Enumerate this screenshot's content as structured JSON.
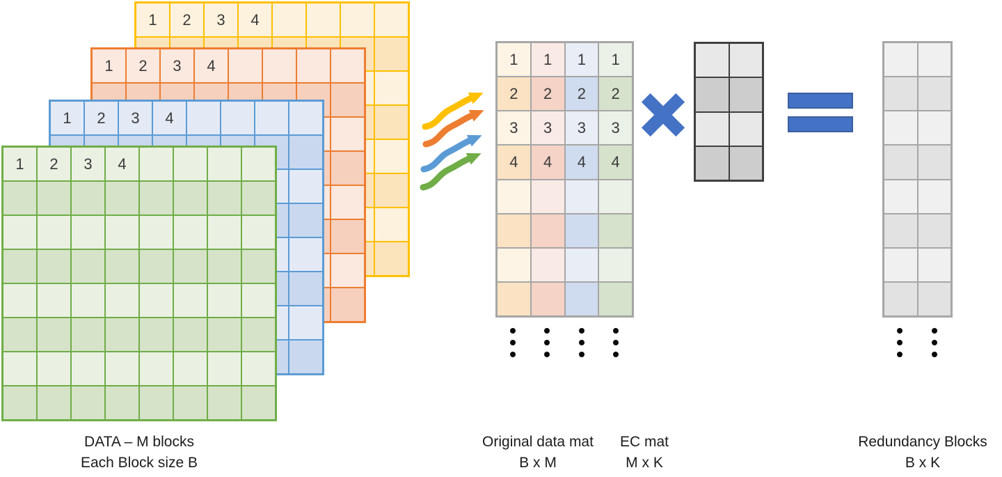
{
  "diagram_title": "erasure-coding-diagram",
  "colors": {
    "operator_blue": "#4472C4",
    "operator_blue_border": "#3B5F9E",
    "grid_line_gray": "#A6A6A6",
    "ec_border_dark": "#404040",
    "dot_black": "#0A0A0A",
    "label_text": "#1C1C1C",
    "cell_number_text": "#3A3A3A"
  },
  "data_blocks": {
    "cell_labels": [
      "1",
      "2",
      "3",
      "4"
    ],
    "rows": 8,
    "cols": 8,
    "grids": [
      {
        "name": "yellow-block",
        "border_color": "#FFC000",
        "fill_light": "#FDF2DD",
        "fill_dark": "#FBE3BB"
      },
      {
        "name": "orange-block",
        "border_color": "#ED7D31",
        "fill_light": "#FBE8DF",
        "fill_dark": "#F6D0BD"
      },
      {
        "name": "blue-block",
        "border_color": "#5B9BD5",
        "fill_light": "#E3EAF6",
        "fill_dark": "#C9D8EE"
      },
      {
        "name": "green-block",
        "border_color": "#70AD47",
        "fill_light": "#EAF1E3",
        "fill_dark": "#D6E3C9"
      }
    ],
    "caption_line1": "DATA – M blocks",
    "caption_line2": "Each Block size B"
  },
  "arrows": [
    {
      "name": "yellow-arrow",
      "color": "#FFC000"
    },
    {
      "name": "orange-arrow",
      "color": "#ED7D31"
    },
    {
      "name": "blue-arrow",
      "color": "#5B9BD5"
    },
    {
      "name": "green-arrow",
      "color": "#70AD47"
    }
  ],
  "original_mat": {
    "row_labels": [
      "1",
      "2",
      "3",
      "4"
    ],
    "rows": 8,
    "cols": 4,
    "columns": [
      {
        "name": "yellow-column",
        "fill_light": "#FDF4E6",
        "fill_dark": "#FAE2C3"
      },
      {
        "name": "orange-column",
        "fill_light": "#FAEAE6",
        "fill_dark": "#F5D3C6"
      },
      {
        "name": "blue-column",
        "fill_light": "#E9EDF6",
        "fill_dark": "#CFDBEE"
      },
      {
        "name": "green-column",
        "fill_light": "#EBF1E7",
        "fill_dark": "#D6E2CB"
      }
    ],
    "caption_line1": "Original data mat",
    "caption_line2": "B x M"
  },
  "ec_mat": {
    "rows": 4,
    "cols": 2,
    "fill_light": "#E8E8E8",
    "fill_dark": "#CDCDCD",
    "caption_line1": "EC mat",
    "caption_line2": "M x K"
  },
  "redundancy": {
    "rows": 8,
    "cols": 2,
    "fill_light": "#F0F0F0",
    "fill_dark": "#E2E2E2",
    "caption_line1": "Redundancy Blocks",
    "caption_line2": "B x K"
  },
  "ellipsis": {
    "dots_per_group": 3,
    "groups_under_original": 4,
    "groups_under_redundancy": 2
  }
}
